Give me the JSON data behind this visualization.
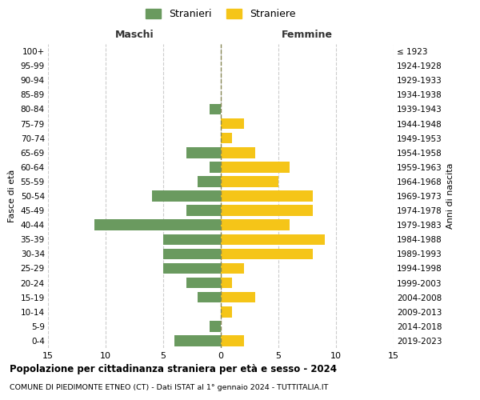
{
  "age_groups": [
    "0-4",
    "5-9",
    "10-14",
    "15-19",
    "20-24",
    "25-29",
    "30-34",
    "35-39",
    "40-44",
    "45-49",
    "50-54",
    "55-59",
    "60-64",
    "65-69",
    "70-74",
    "75-79",
    "80-84",
    "85-89",
    "90-94",
    "95-99",
    "100+"
  ],
  "birth_years": [
    "2019-2023",
    "2014-2018",
    "2009-2013",
    "2004-2008",
    "1999-2003",
    "1994-1998",
    "1989-1993",
    "1984-1988",
    "1979-1983",
    "1974-1978",
    "1969-1973",
    "1964-1968",
    "1959-1963",
    "1954-1958",
    "1949-1953",
    "1944-1948",
    "1939-1943",
    "1934-1938",
    "1929-1933",
    "1924-1928",
    "≤ 1923"
  ],
  "maschi": [
    4,
    1,
    0,
    2,
    3,
    5,
    5,
    5,
    11,
    3,
    6,
    2,
    1,
    3,
    0,
    0,
    1,
    0,
    0,
    0,
    0
  ],
  "femmine": [
    2,
    0,
    1,
    3,
    1,
    2,
    8,
    9,
    6,
    8,
    8,
    5,
    6,
    3,
    1,
    2,
    0,
    0,
    0,
    0,
    0
  ],
  "male_color": "#6a9a5f",
  "female_color": "#f5c518",
  "title": "Popolazione per cittadinanza straniera per età e sesso - 2024",
  "subtitle": "COMUNE DI PIEDIMONTE ETNEO (CT) - Dati ISTAT al 1° gennaio 2024 - TUTTITALIA.IT",
  "xlabel_left": "Maschi",
  "xlabel_right": "Femmine",
  "ylabel_left": "Fasce di età",
  "ylabel_right": "Anni di nascita",
  "legend_male": "Stranieri",
  "legend_female": "Straniere",
  "xlim": 15,
  "background_color": "#ffffff",
  "grid_color": "#cccccc"
}
